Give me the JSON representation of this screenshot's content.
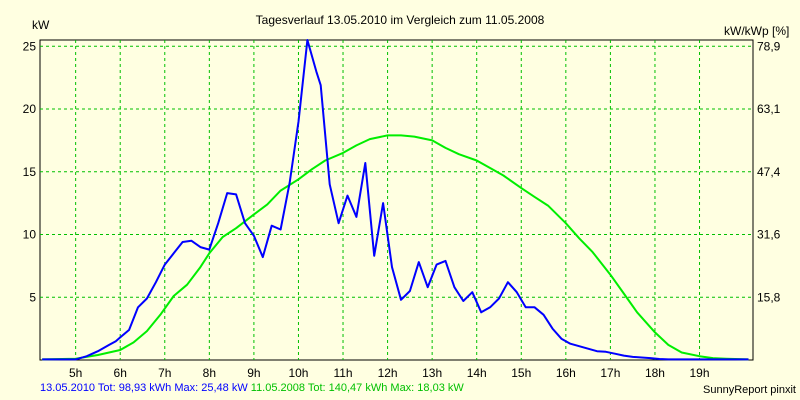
{
  "chart_data": {
    "type": "line",
    "title": "Tagesverlauf 13.05.2010 im Vergleich zum 11.05.2008",
    "ylabel_left": "kW",
    "ylabel_right": "kW/kWp [%]",
    "x_ticks": [
      "5h",
      "6h",
      "7h",
      "8h",
      "9h",
      "10h",
      "11h",
      "12h",
      "13h",
      "14h",
      "15h",
      "16h",
      "17h",
      "18h",
      "19h"
    ],
    "x_range": [
      4.2,
      20.2
    ],
    "y_ticks_left": [
      "5",
      "10",
      "15",
      "20",
      "25"
    ],
    "y_ticks_right": [
      "15,8",
      "31,6",
      "47,4",
      "63,1",
      "78,9"
    ],
    "ylim": [
      0,
      25.5
    ],
    "grid": true,
    "colors": {
      "background": "#ffffe1",
      "plot": "#ffffe1",
      "grid": "#00c000",
      "series_2010": "#0000ff",
      "series_2008": "#00ee00"
    },
    "series": [
      {
        "name": "13.05.2010",
        "color": "#0000ff",
        "x": [
          4.25,
          4.5,
          4.75,
          5.0,
          5.25,
          5.5,
          5.75,
          5.9,
          6.0,
          6.2,
          6.4,
          6.6,
          6.8,
          7.0,
          7.2,
          7.4,
          7.6,
          7.8,
          8.0,
          8.2,
          8.4,
          8.6,
          8.8,
          9.0,
          9.2,
          9.4,
          9.6,
          9.8,
          10.0,
          10.2,
          10.4,
          10.5,
          10.7,
          10.9,
          11.1,
          11.3,
          11.5,
          11.7,
          11.9,
          12.1,
          12.3,
          12.5,
          12.7,
          12.9,
          13.1,
          13.3,
          13.5,
          13.7,
          13.9,
          14.1,
          14.3,
          14.5,
          14.7,
          14.9,
          15.1,
          15.3,
          15.5,
          15.7,
          15.9,
          16.1,
          16.3,
          16.5,
          16.7,
          16.9,
          17.1,
          17.3,
          17.5,
          17.7,
          17.9,
          18.1,
          18.3,
          18.5,
          18.7,
          18.9,
          19.1,
          19.3,
          19.5,
          19.7,
          19.9,
          20.1
        ],
        "values": [
          0.05,
          0.05,
          0.05,
          0.05,
          0.3,
          0.7,
          1.2,
          1.5,
          1.8,
          2.4,
          4.2,
          4.9,
          6.2,
          7.6,
          8.5,
          9.4,
          9.5,
          9.0,
          8.8,
          10.9,
          13.3,
          13.2,
          10.9,
          9.9,
          8.2,
          10.7,
          10.4,
          14.1,
          19.0,
          25.5,
          23.0,
          21.9,
          14.0,
          10.9,
          13.1,
          11.4,
          15.7,
          8.3,
          12.5,
          7.4,
          4.8,
          5.5,
          7.8,
          5.8,
          7.6,
          7.9,
          5.8,
          4.7,
          5.4,
          3.8,
          4.2,
          4.9,
          6.2,
          5.4,
          4.2,
          4.2,
          3.6,
          2.5,
          1.7,
          1.3,
          1.1,
          0.9,
          0.7,
          0.65,
          0.5,
          0.35,
          0.25,
          0.2,
          0.15,
          0.08,
          0.05,
          0.05,
          0.05,
          0.05,
          0.05,
          0.05,
          0.05,
          0.05,
          0.05,
          0.05
        ]
      },
      {
        "name": "11.05.2008",
        "color": "#00ee00",
        "x": [
          4.25,
          5.0,
          5.5,
          6.0,
          6.3,
          6.6,
          6.9,
          7.2,
          7.5,
          7.8,
          8.0,
          8.3,
          8.6,
          9.0,
          9.3,
          9.6,
          10.0,
          10.3,
          10.6,
          11.0,
          11.3,
          11.6,
          12.0,
          12.3,
          12.6,
          13.0,
          13.3,
          13.6,
          14.0,
          14.3,
          14.6,
          15.0,
          15.3,
          15.6,
          16.0,
          16.3,
          16.6,
          17.0,
          17.3,
          17.6,
          18.0,
          18.3,
          18.6,
          19.0,
          19.3,
          19.6,
          20.1
        ],
        "values": [
          0.05,
          0.1,
          0.4,
          0.8,
          1.4,
          2.3,
          3.6,
          5.1,
          6.0,
          7.4,
          8.5,
          9.8,
          10.5,
          11.6,
          12.4,
          13.5,
          14.4,
          15.2,
          15.9,
          16.5,
          17.1,
          17.6,
          17.9,
          17.9,
          17.8,
          17.5,
          16.9,
          16.4,
          15.9,
          15.3,
          14.7,
          13.7,
          13.0,
          12.3,
          10.9,
          9.7,
          8.6,
          6.8,
          5.3,
          3.8,
          2.2,
          1.2,
          0.6,
          0.3,
          0.15,
          0.1,
          0.05
        ]
      }
    ]
  },
  "footer": {
    "stats_2010": "13.05.2010 Tot: 98,93 kWh Max: 25,48 kW",
    "stats_2008": "11.05.2008 Tot: 140,47 kWh Max: 18,03 kW",
    "credit": "SunnyReport pinxit"
  }
}
